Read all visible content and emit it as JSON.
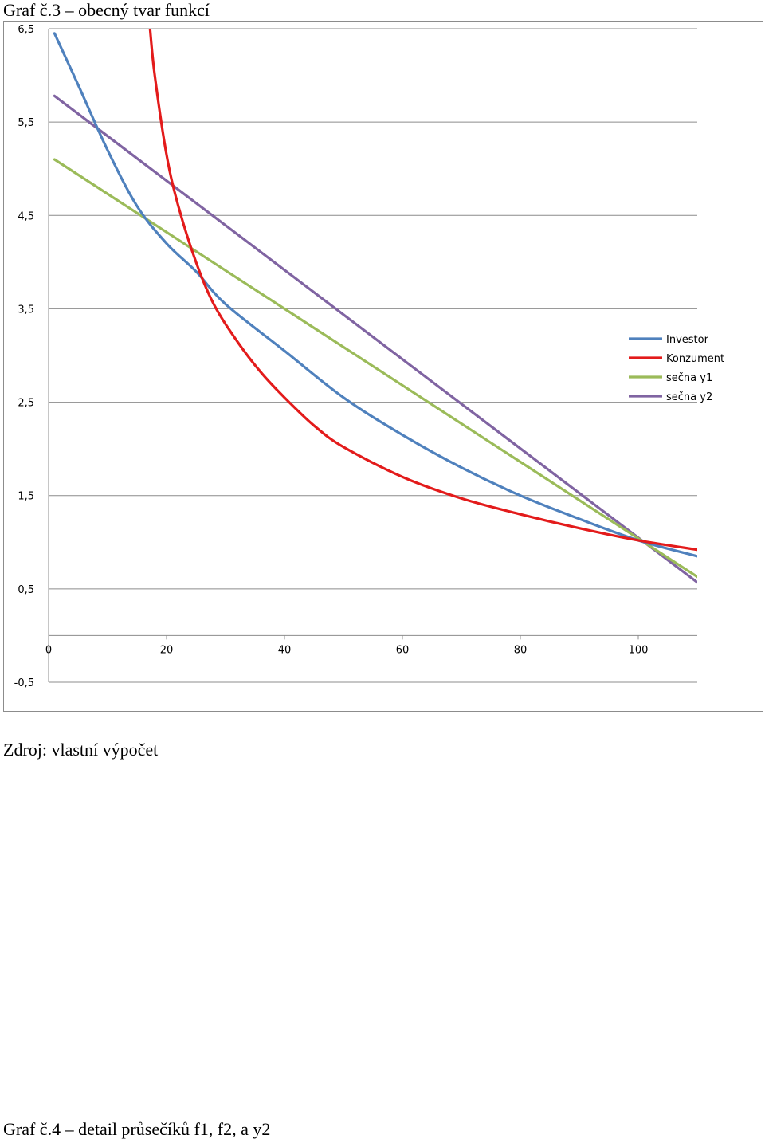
{
  "captions": {
    "top": "Graf č.3 – obecný tvar funkcí",
    "source": "Zdroj: vlastní výpočet",
    "bottom": "Graf č.4 – detail průsečíků f1, f2, a y2"
  },
  "chart_data": {
    "type": "line",
    "title": "",
    "xlabel": "",
    "ylabel": "",
    "xlim": [
      0,
      110
    ],
    "ylim": [
      -0.5,
      6.5
    ],
    "x_ticks": [
      "0",
      "20",
      "40",
      "60",
      "80",
      "100"
    ],
    "y_ticks": [
      "6,5",
      "5,5",
      "4,5",
      "3,5",
      "2,5",
      "1,5",
      "0,5",
      "-0,5"
    ],
    "grid": "horizontal",
    "legend_position": "right",
    "series": [
      {
        "name": "Investor",
        "color": "#4f81bd",
        "x": [
          1,
          5,
          10,
          15,
          20,
          25,
          30,
          40,
          50,
          60,
          70,
          80,
          90,
          100,
          110
        ],
        "y": [
          6.45,
          5.9,
          5.2,
          4.6,
          4.2,
          3.9,
          3.55,
          3.05,
          2.55,
          2.15,
          1.8,
          1.5,
          1.25,
          1.02,
          0.85
        ]
      },
      {
        "name": "Konzument",
        "color": "#e31b1b",
        "x": [
          17.2,
          18,
          20,
          22,
          25,
          28,
          32,
          36,
          40,
          45,
          50,
          60,
          70,
          80,
          90,
          100,
          110
        ],
        "y": [
          6.5,
          6.0,
          5.15,
          4.6,
          4.0,
          3.55,
          3.15,
          2.82,
          2.55,
          2.25,
          2.02,
          1.7,
          1.47,
          1.3,
          1.15,
          1.02,
          0.92
        ]
      },
      {
        "name": "sečna y1",
        "color": "#9bbb59",
        "x": [
          1,
          110
        ],
        "y": [
          5.1,
          0.63
        ]
      },
      {
        "name": "sečna y2",
        "color": "#8064a2",
        "x": [
          1,
          110
        ],
        "y": [
          5.78,
          0.57
        ]
      }
    ]
  }
}
